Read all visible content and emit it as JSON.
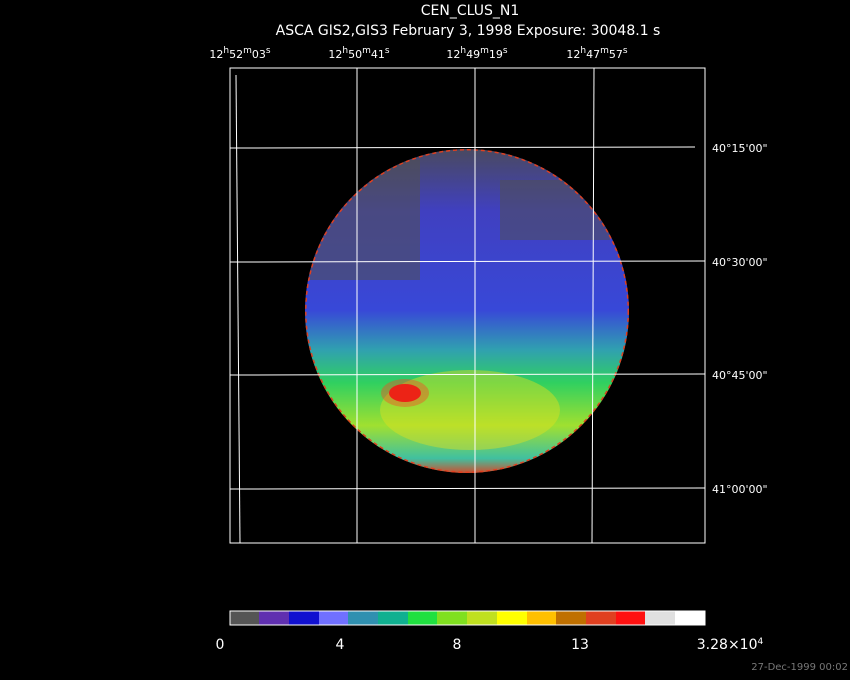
{
  "header": {
    "title": "CEN_CLUS_N1",
    "subtitle": "ASCA GIS2,GIS3 February 3, 1998 Exposure: 30048.1 s"
  },
  "ra_labels": [
    [
      "12",
      "h",
      "52",
      "m",
      "03",
      "s"
    ],
    [
      "12",
      "h",
      "50",
      "m",
      "41",
      "s"
    ],
    [
      "12",
      "h",
      "49",
      "m",
      "19",
      "s"
    ],
    [
      "12",
      "h",
      "47",
      "m",
      "57",
      "s"
    ]
  ],
  "dec_labels": [
    "40°15'00\"",
    "40°30'00\"",
    "40°45'00\"",
    "41°00'00\""
  ],
  "colorbar_labels": [
    [
      "0"
    ],
    [
      "4"
    ],
    [
      "8"
    ],
    [
      "13"
    ],
    [
      "3.28×10",
      "4"
    ]
  ],
  "footer": "27-Dec-1999 00:02"
}
